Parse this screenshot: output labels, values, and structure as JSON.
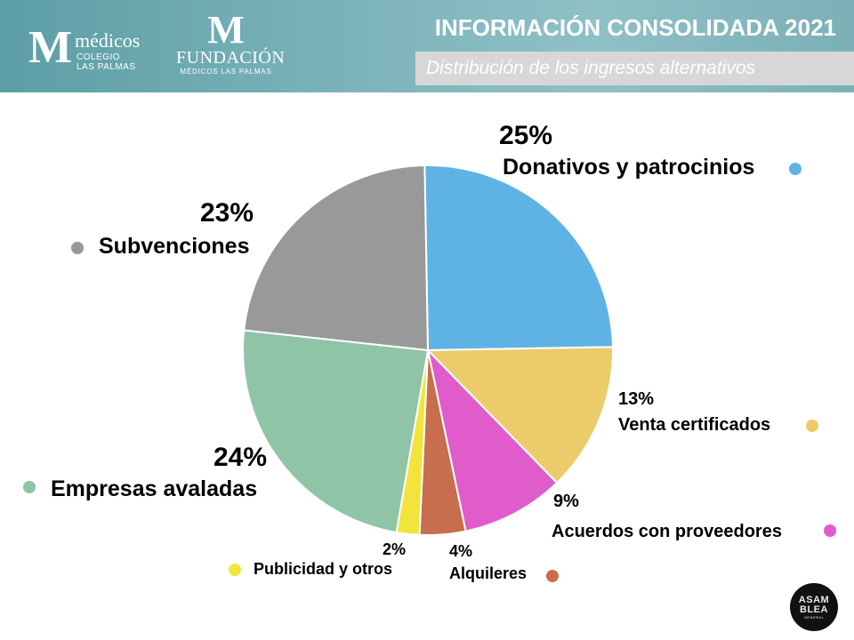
{
  "header": {
    "title": "INFORMACIÓN CONSOLIDADA 2021",
    "subtitle": "Distribución de los ingresos alternativos",
    "logo_medicos": {
      "mark": "M",
      "word": "médicos",
      "line1": "COLEGIO",
      "line2": "LAS PALMAS"
    },
    "logo_fundacion": {
      "mark": "M",
      "word": "FUNDACIÓN",
      "line1": "MÉDICOS LAS PALMAS"
    }
  },
  "badge": {
    "line1": "ASAM",
    "line2": "BLEA",
    "line3": "GENERAL"
  },
  "chart_data": {
    "type": "pie",
    "start_angle_deg": -1,
    "direction": "clockwise",
    "slices": [
      {
        "label": "Donativos y patrocinios",
        "percent_label": "25%",
        "value": 25,
        "color": "#5eb3e4"
      },
      {
        "label": "Venta certificados",
        "percent_label": "13%",
        "value": 13,
        "color": "#eccb6a"
      },
      {
        "label": "Acuerdos con proveedores",
        "percent_label": "9%",
        "value": 9,
        "color": "#e15ccb"
      },
      {
        "label": "Alquileres",
        "percent_label": "4%",
        "value": 4,
        "color": "#c66e4e"
      },
      {
        "label": "Publicidad y otros",
        "percent_label": "2%",
        "value": 2,
        "color": "#f3e43c"
      },
      {
        "label": "Empresas avaladas",
        "percent_label": "24%",
        "value": 24,
        "color": "#8fc4a7"
      },
      {
        "label": "Subvenciones",
        "percent_label": "23%",
        "value": 23,
        "color": "#999999"
      }
    ]
  }
}
